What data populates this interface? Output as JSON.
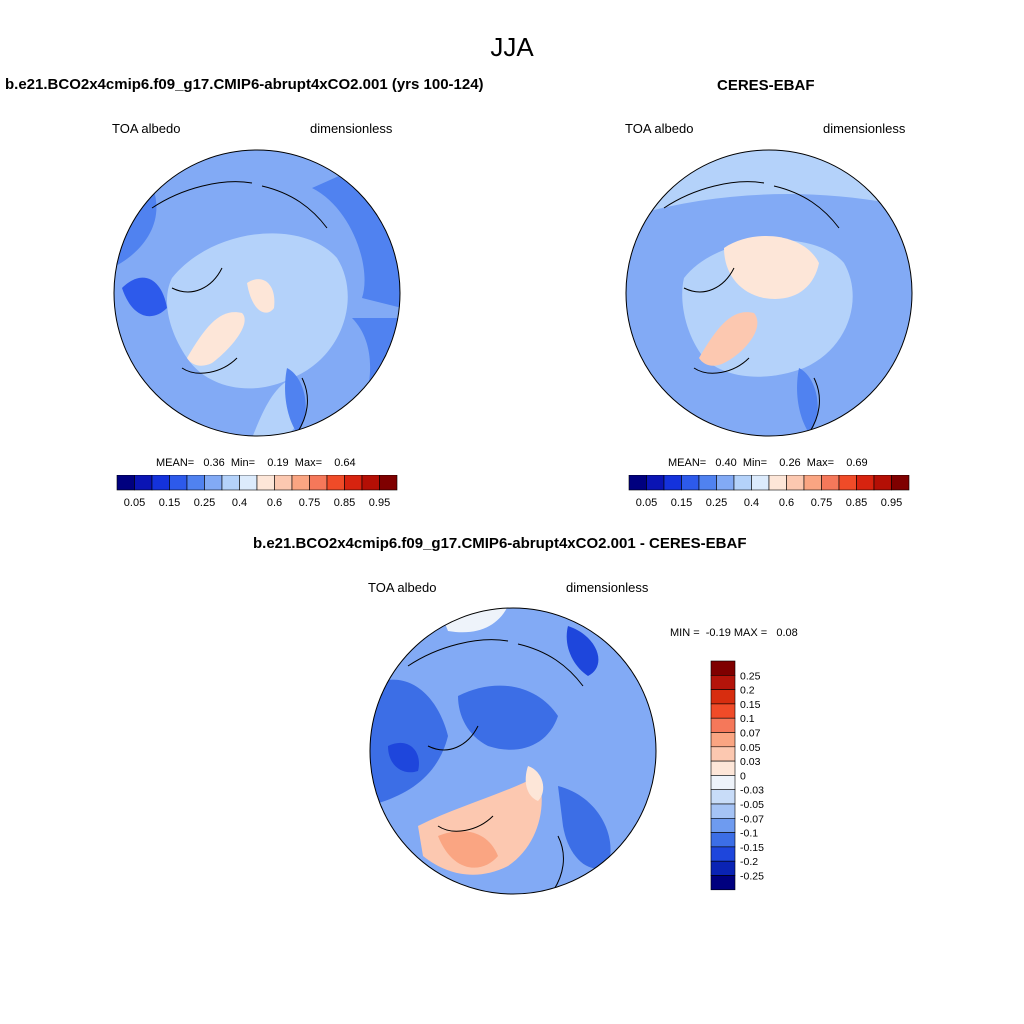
{
  "title": "JJA",
  "panels": [
    {
      "title": "b.e21.BCO2x4cmip6.f09_g17.CMIP6-abrupt4xCO2.001 (yrs 100-124)",
      "var_label": "TOA albedo",
      "units": "dimensionless",
      "stats": "MEAN=   0.36  Min=    0.19  Max=    0.64"
    },
    {
      "title": "CERES-EBAF",
      "var_label": "TOA albedo",
      "units": "dimensionless",
      "stats": "MEAN=   0.40  Min=    0.26  Max=    0.69"
    },
    {
      "title": "b.e21.BCO2x4cmip6.f09_g17.CMIP6-abrupt4xCO2.001 - CERES-EBAF",
      "var_label": "TOA albedo",
      "units": "dimensionless",
      "stats": "MIN =  -0.19 MAX =   0.08"
    }
  ],
  "colorbar_abs": {
    "colors": [
      "#00007f",
      "#0a14b4",
      "#1432dc",
      "#2d5aeb",
      "#5082f0",
      "#82aaf5",
      "#b4d2fa",
      "#dcebfc",
      "#fde6d8",
      "#fcc8b0",
      "#faa582",
      "#f5785a",
      "#f04b28",
      "#d7230f",
      "#b40f05",
      "#7f0000"
    ],
    "tick_labels": [
      "0.05",
      "0.15",
      "0.25",
      "0.4",
      "0.6",
      "0.75",
      "0.85",
      "0.95"
    ]
  },
  "colorbar_diff": {
    "colors": [
      "#7f0000",
      "#b4140a",
      "#d72d0f",
      "#f04b28",
      "#f5785a",
      "#faa582",
      "#fcc8b0",
      "#fde6d8",
      "#eef3fa",
      "#c8dcf8",
      "#a5c3f5",
      "#6e9bf0",
      "#3c6ee6",
      "#1e46dc",
      "#0a23b4",
      "#00007f"
    ],
    "tick_labels": [
      "0.25",
      "0.2",
      "0.15",
      "0.1",
      "0.07",
      "0.05",
      "0.03",
      "0",
      "-0.03",
      "-0.05",
      "-0.07",
      "-0.1",
      "-0.15",
      "-0.2",
      "-0.25"
    ]
  }
}
